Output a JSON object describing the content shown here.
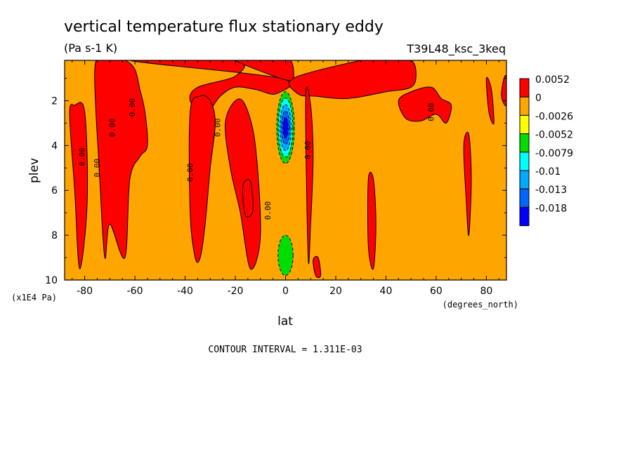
{
  "chart_data": {
    "type": "heatmap",
    "title": "vertical temperature flux stationary eddy",
    "units": "(Pa s-1 K)",
    "run_label": "T39L48_ksc_3keq",
    "xlabel": "lat",
    "xunits": "(degrees_north)",
    "ylabel": "plev",
    "yunits": "(x1E4 Pa)",
    "xlim": [
      -88,
      88
    ],
    "ylim": [
      10,
      0.2
    ],
    "xticks": [
      -80,
      -60,
      -40,
      -20,
      0,
      20,
      40,
      60,
      80
    ],
    "yticks": [
      2,
      4,
      6,
      8,
      10
    ],
    "contour_interval": "CONTOUR INTERVAL = 1.311E-03",
    "contour_label": "0.00",
    "legend": {
      "placement": "right",
      "levels": [
        "0.0052",
        "0",
        "-0.0026",
        "-0.0052",
        "-0.0079",
        "-0.01",
        "-0.013",
        "-0.018"
      ],
      "colors": [
        "#ff0000",
        "#ffa500",
        "#ffff00",
        "#00dd00",
        "#00ffff",
        "#00aaff",
        "#0066ff",
        "#0000ff"
      ]
    },
    "background_color": "#ffa500",
    "positive_regions": [
      {
        "name": "upper-band-south",
        "lat": [
          -62,
          -20,
          -20,
          -35,
          -38,
          -32,
          -26,
          -20,
          -12,
          -4,
          -2
        ],
        "plev": [
          0.2,
          0.2,
          0.9,
          1.4,
          2.0,
          2.6,
          1.8,
          1.4,
          1.5,
          1.7,
          1.0
        ]
      },
      {
        "name": "upper-band-north",
        "lat": [
          3,
          5,
          12,
          25,
          40,
          50,
          52,
          50,
          42,
          36,
          30
        ],
        "plev": [
          1.0,
          1.7,
          1.8,
          1.9,
          1.6,
          1.4,
          0.8,
          0.2,
          0.2,
          0.2,
          0.2
        ]
      },
      {
        "name": "upper-band-mid",
        "lat": [
          -20,
          -12,
          -4,
          2,
          3,
          -2
        ],
        "plev": [
          0.2,
          0.2,
          0.2,
          0.2,
          1.0,
          1.0
        ]
      },
      {
        "name": "column-80s",
        "lat": [
          -86,
          -84,
          -80,
          -79,
          -82,
          -84
        ],
        "plev": [
          2.6,
          2.2,
          2.5,
          6.5,
          9.5,
          6.0
        ]
      },
      {
        "name": "column-70s-60s",
        "lat": [
          -76,
          -72,
          -70,
          -64,
          -60,
          -58,
          -56,
          -55,
          -58,
          -62,
          -64,
          -70,
          -72,
          -74
        ],
        "plev": [
          0.6,
          0.2,
          0.2,
          0.2,
          0.6,
          1.5,
          2.5,
          4.0,
          4.5,
          5.5,
          9.0,
          7.5,
          9.0,
          5.5
        ]
      },
      {
        "name": "column-40s-30s",
        "lat": [
          -38,
          -34,
          -30,
          -28,
          -30,
          -32,
          -34,
          -36,
          -38
        ],
        "plev": [
          2.5,
          1.8,
          2.0,
          3.0,
          5.0,
          7.5,
          9.0,
          9.0,
          7.0
        ]
      },
      {
        "name": "column-20s",
        "lat": [
          -24,
          -20,
          -16,
          -12,
          -10,
          -14,
          -18,
          -22
        ],
        "plev": [
          3.0,
          2.0,
          2.2,
          4.0,
          8.0,
          9.5,
          7.0,
          5.0
        ]
      },
      {
        "name": "region-south-15",
        "lat": [
          -17,
          -14,
          -13,
          -16
        ],
        "plev": [
          5.8,
          5.6,
          6.9,
          7.1
        ]
      },
      {
        "name": "column-north-10",
        "lat": [
          8,
          10,
          11,
          10,
          9
        ],
        "plev": [
          1.9,
          2.2,
          4.5,
          7.5,
          9.0
        ]
      },
      {
        "name": "region-north-14",
        "lat": [
          11,
          13,
          14,
          12
        ],
        "plev": [
          9.1,
          9.0,
          9.8,
          9.8
        ]
      },
      {
        "name": "column-north-35",
        "lat": [
          33,
          35,
          36,
          35,
          33
        ],
        "plev": [
          5.5,
          5.5,
          7.5,
          9.5,
          8.5
        ]
      },
      {
        "name": "region-north-50s",
        "lat": [
          45,
          50,
          58,
          62,
          66,
          64,
          60,
          54,
          48
        ],
        "plev": [
          2.0,
          1.6,
          1.4,
          1.9,
          2.2,
          3.0,
          2.6,
          2.9,
          2.8
        ]
      },
      {
        "name": "column-north-72",
        "lat": [
          71,
          73,
          74,
          73,
          72
        ],
        "plev": [
          4.0,
          3.5,
          5.5,
          8.0,
          6.5
        ]
      },
      {
        "name": "column-north-80",
        "lat": [
          80,
          82,
          83,
          81
        ],
        "plev": [
          1.0,
          1.5,
          3.0,
          2.5
        ]
      },
      {
        "name": "column-north-88",
        "lat": [
          87,
          88,
          88,
          86
        ],
        "plev": [
          1.0,
          1.0,
          2.2,
          1.8
        ]
      }
    ],
    "negative_cores": [
      {
        "name": "core-upper",
        "lat": 0,
        "plev": 3.2,
        "lat_halfwidth": 3.5,
        "plev_halfwidth": 1.6,
        "levels": [
          "-0.0026",
          "-0.0052",
          "-0.0079",
          "-0.01",
          "-0.013"
        ]
      },
      {
        "name": "core-lower",
        "lat": 0,
        "plev": 8.9,
        "lat_halfwidth": 3.0,
        "plev_halfwidth": 0.9,
        "levels": [
          "-0.0026"
        ]
      }
    ]
  }
}
